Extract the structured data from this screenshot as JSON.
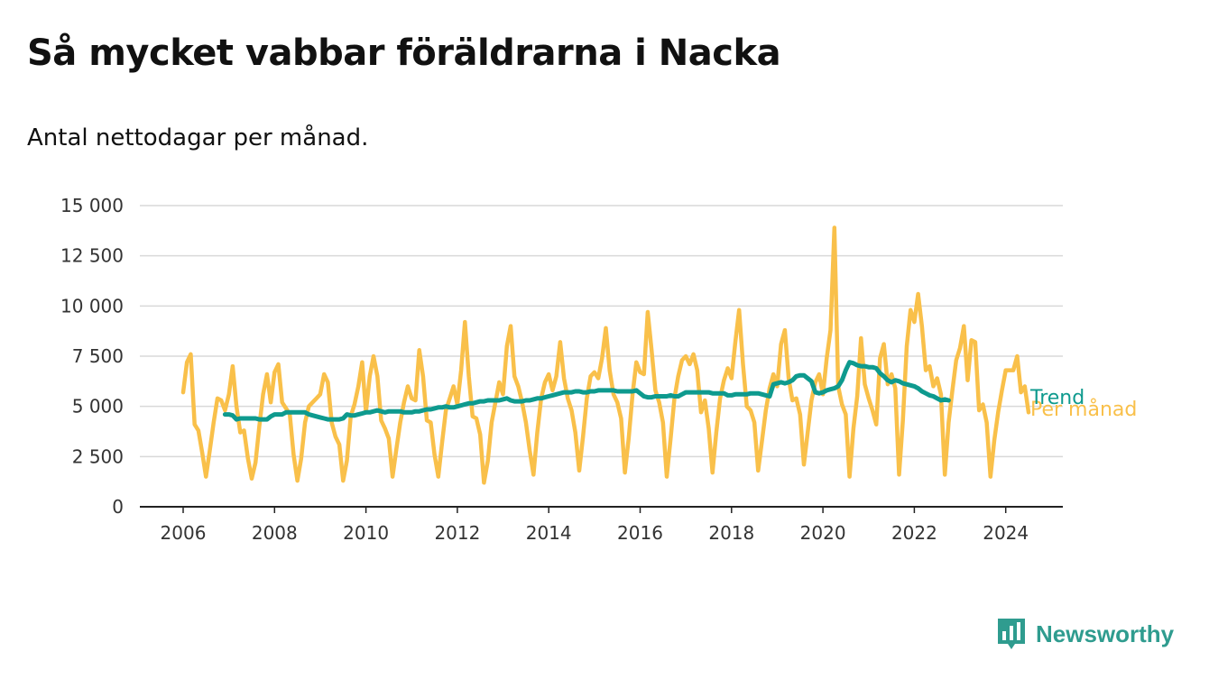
{
  "title": "Så mycket vabbar föräldrarna i Nacka",
  "subtitle": "Antal nettodagar per månad.",
  "brand": {
    "name": "Newsworthy",
    "color": "#2f9c8f"
  },
  "chart_data": {
    "type": "line",
    "title": "Så mycket vabbar föräldrarna i Nacka",
    "subtitle": "Antal nettodagar per månad.",
    "xlim": [
      2006,
      2024.5
    ],
    "ylim": [
      0,
      15000
    ],
    "x_ticks": [
      2006,
      2008,
      2010,
      2012,
      2014,
      2016,
      2018,
      2020,
      2022,
      2024
    ],
    "y_ticks": [
      0,
      2500,
      5000,
      7500,
      10000,
      12500,
      15000
    ],
    "y_tick_labels": [
      "0",
      "2 500",
      "5 000",
      "7 500",
      "10 000",
      "12 500",
      "15 000"
    ],
    "grid": true,
    "series": [
      {
        "name": "Per månad",
        "color": "#f9c04a",
        "start": "2006-01",
        "values": [
          5700,
          7200,
          7600,
          4100,
          3800,
          2700,
          1500,
          2800,
          4200,
          5400,
          5300,
          4800,
          5600,
          7000,
          5000,
          3700,
          3800,
          2400,
          1400,
          2200,
          4000,
          5600,
          6600,
          5200,
          6700,
          7100,
          5200,
          4900,
          4600,
          2600,
          1300,
          2400,
          4200,
          5000,
          5200,
          5400,
          5600,
          6600,
          6200,
          4200,
          3500,
          3100,
          1300,
          2300,
          4500,
          5100,
          6000,
          7200,
          4700,
          6500,
          7500,
          6500,
          4300,
          3900,
          3400,
          1500,
          2900,
          4200,
          5200,
          6000,
          5400,
          5300,
          7800,
          6500,
          4300,
          4200,
          2600,
          1500,
          3200,
          4800,
          5400,
          6000,
          5100,
          6800,
          9200,
          6500,
          4500,
          4400,
          3600,
          1200,
          2300,
          4200,
          5200,
          6200,
          5600,
          8000,
          9000,
          6500,
          6000,
          5200,
          4200,
          2800,
          1600,
          3700,
          5400,
          6200,
          6600,
          5800,
          6500,
          8200,
          6400,
          5400,
          4800,
          3700,
          1800,
          3500,
          5400,
          6500,
          6700,
          6400,
          7400,
          8900,
          6800,
          5600,
          5200,
          4400,
          1700,
          3400,
          5600,
          7200,
          6700,
          6600,
          9700,
          7800,
          5800,
          5200,
          4200,
          1500,
          3400,
          5400,
          6500,
          7300,
          7500,
          7100,
          7600,
          6800,
          4700,
          5300,
          3900,
          1700,
          3700,
          5400,
          6300,
          6900,
          6400,
          8200,
          9800,
          7100,
          5000,
          4800,
          4200,
          1800,
          3300,
          4800,
          5900,
          6600,
          6000,
          8100,
          8800,
          6400,
          5300,
          5400,
          4600,
          2100,
          3700,
          5300,
          6200,
          6600,
          5600,
          7400,
          8800,
          13900,
          6000,
          5100,
          4600,
          1500,
          3900,
          5500,
          8400,
          6100,
          5400,
          4800,
          4100,
          7400,
          8100,
          6100,
          6600,
          5900,
          1600,
          4300,
          8000,
          9800,
          9200,
          10600,
          9000,
          6800,
          7000,
          6000,
          6400,
          5600,
          1600,
          4200,
          5800,
          7300,
          7900,
          9000,
          6300,
          8300,
          8200,
          4800,
          5100,
          4200,
          1500,
          3300,
          4700,
          5800,
          6800,
          6800,
          6800,
          7500,
          5700,
          6000,
          4700
        ]
      },
      {
        "name": "Trend",
        "color": "#0e9a8e",
        "start": "2006-12",
        "values": [
          4600,
          4600,
          4550,
          4350,
          4400,
          4400,
          4400,
          4400,
          4400,
          4350,
          4350,
          4350,
          4500,
          4600,
          4600,
          4600,
          4700,
          4700,
          4700,
          4700,
          4700,
          4700,
          4600,
          4550,
          4500,
          4450,
          4400,
          4350,
          4350,
          4350,
          4350,
          4400,
          4600,
          4550,
          4550,
          4600,
          4650,
          4700,
          4700,
          4750,
          4800,
          4750,
          4700,
          4750,
          4750,
          4750,
          4750,
          4700,
          4700,
          4700,
          4750,
          4750,
          4800,
          4850,
          4850,
          4900,
          4950,
          4950,
          5000,
          4950,
          4950,
          5000,
          5050,
          5100,
          5150,
          5150,
          5200,
          5250,
          5250,
          5300,
          5300,
          5300,
          5300,
          5350,
          5400,
          5300,
          5250,
          5250,
          5250,
          5300,
          5300,
          5350,
          5400,
          5400,
          5450,
          5500,
          5550,
          5600,
          5650,
          5700,
          5700,
          5700,
          5750,
          5750,
          5700,
          5700,
          5750,
          5750,
          5800,
          5800,
          5800,
          5800,
          5800,
          5750,
          5750,
          5750,
          5750,
          5750,
          5800,
          5650,
          5500,
          5450,
          5450,
          5500,
          5500,
          5500,
          5500,
          5550,
          5500,
          5500,
          5600,
          5700,
          5700,
          5700,
          5700,
          5700,
          5700,
          5700,
          5650,
          5650,
          5650,
          5650,
          5550,
          5550,
          5600,
          5600,
          5600,
          5600,
          5650,
          5650,
          5650,
          5600,
          5550,
          5500,
          6100,
          6150,
          6200,
          6150,
          6200,
          6300,
          6500,
          6550,
          6550,
          6400,
          6250,
          5700,
          5650,
          5700,
          5800,
          5850,
          5900,
          6000,
          6300,
          6800,
          7200,
          7150,
          7050,
          7000,
          7000,
          6950,
          6950,
          6900,
          6650,
          6500,
          6300,
          6200,
          6300,
          6250,
          6150,
          6100,
          6050,
          6000,
          5900,
          5750,
          5650,
          5550,
          5500,
          5400,
          5300,
          5350,
          5300
        ]
      }
    ]
  }
}
